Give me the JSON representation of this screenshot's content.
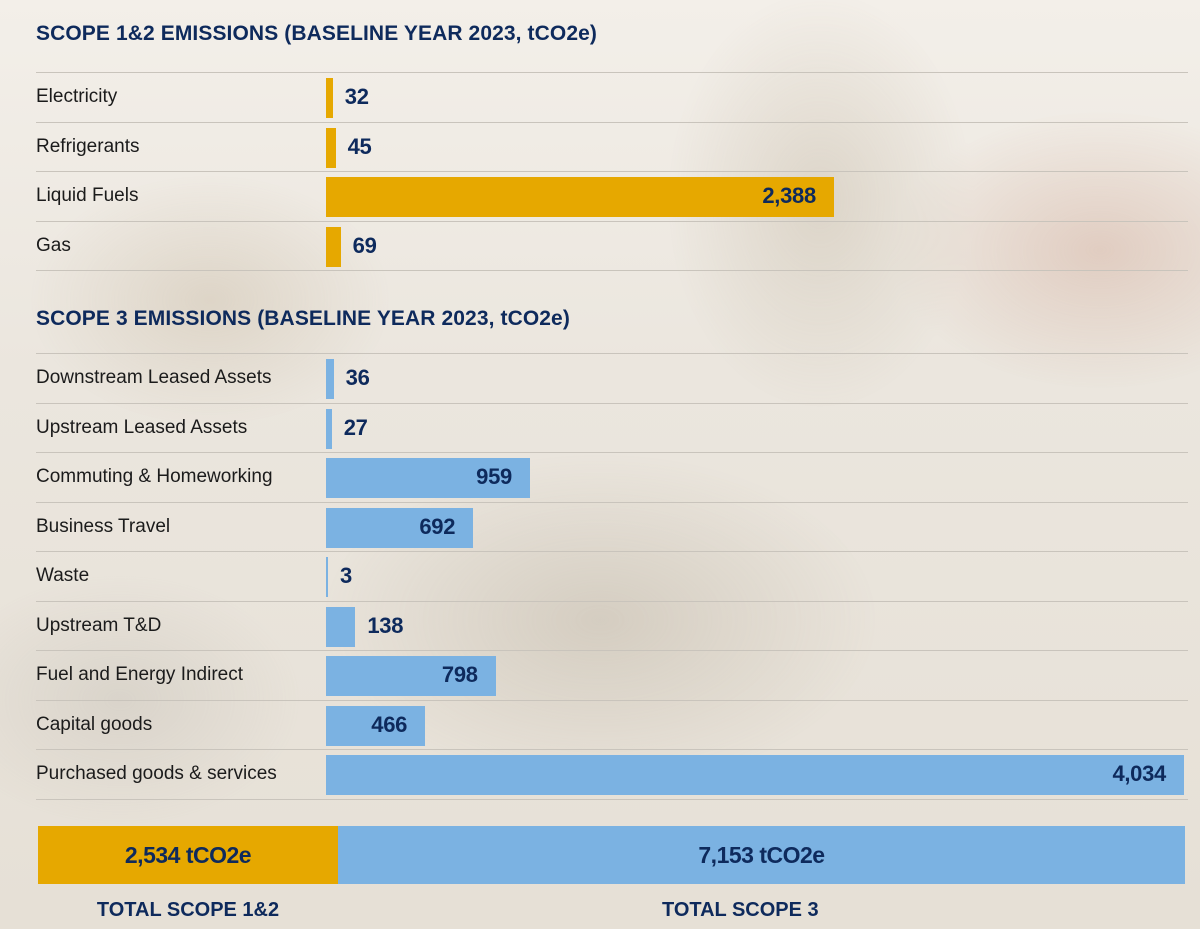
{
  "chart_data": [
    {
      "type": "bar",
      "orientation": "horizontal",
      "title": "SCOPE 1&2 EMISSIONS (BASELINE YEAR 2023, tCO2e)",
      "categories": [
        "Electricity",
        "Refrigerants",
        "Liquid Fuels",
        "Gas"
      ],
      "values": [
        32,
        45,
        2388,
        69
      ],
      "value_labels": [
        "32",
        "45",
        "2,388",
        "69"
      ],
      "color": "#e6a800",
      "grid": false,
      "legend": "none"
    },
    {
      "type": "bar",
      "orientation": "horizontal",
      "title": "SCOPE 3 EMISSIONS (BASELINE YEAR 2023, tCO2e)",
      "categories": [
        "Downstream Leased Assets",
        "Upstream Leased Assets",
        "Commuting & Homeworking",
        "Business Travel",
        "Waste",
        "Upstream T&D",
        "Fuel and Energy Indirect",
        "Capital goods",
        "Purchased goods & services"
      ],
      "values": [
        36,
        27,
        959,
        692,
        3,
        138,
        798,
        466,
        4034
      ],
      "value_labels": [
        "36",
        "27",
        "959",
        "692",
        "3",
        "138",
        "798",
        "466",
        "4,034"
      ],
      "color": "#7bb2e2",
      "grid": false,
      "legend": "none"
    },
    {
      "type": "bar",
      "orientation": "horizontal",
      "stacked": true,
      "categories": [
        "TOTAL SCOPE 1&2",
        "TOTAL SCOPE 3"
      ],
      "values": [
        2534,
        7153
      ],
      "value_labels": [
        "2,534 tCO2e",
        "7,153 tCO2e"
      ],
      "colors": [
        "#e6a800",
        "#7bb2e2"
      ]
    }
  ],
  "colors": {
    "scope12": "#e6a800",
    "scope3": "#7bb2e2",
    "heading": "#0e2a5c"
  }
}
